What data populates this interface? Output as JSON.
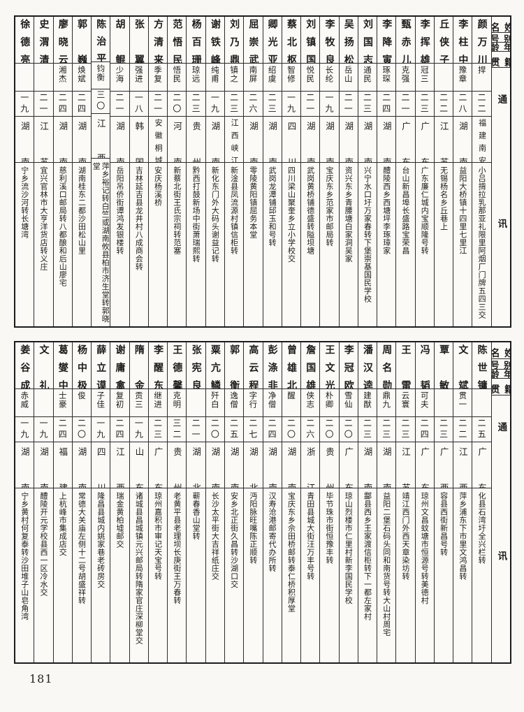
{
  "page": {
    "number": "181"
  },
  "headers": {
    "name": "姓名",
    "alias": "别号",
    "age": "年龄",
    "native": "籍贯",
    "address": "通讯处"
  },
  "tables": [
    {
      "people": [
        {
          "name": "颜万川",
          "alias": "捍",
          "age": "二二",
          "native": "福建南安",
          "address": "小吕揹拉乳那亚礼限里阿烟厂门牌五四三交"
        },
        {
          "name": "李柱中",
          "alias": "豫章",
          "age": "二八",
          "native": "湖南",
          "address": "益阳大桥镇十四里七里江"
        },
        {
          "name": "丘侠子",
          "alias": "",
          "age": "二二",
          "native": "江苏",
          "address": "无锡杨名乡丘巷上"
        },
        {
          "name": "李挥雄",
          "alias": "冠三",
          "age": "二三",
          "native": "广东",
          "address": "广东廉仁城内宝顺隆号转"
        },
        {
          "name": "甄赤儿",
          "alias": "克强",
          "age": "二一",
          "native": "广东",
          "address": "台山新昌埠长盛路宝荣昌"
        },
        {
          "name": "李降寅",
          "alias": "琢琛",
          "age": "二四",
          "native": "湖南",
          "address": "醴陵西乡西塘坪李琢璋家"
        },
        {
          "name": "刘国志",
          "alias": "通民",
          "age": "二三",
          "native": "湖南",
          "address": "兴宁水口圩万家春转下堡崇基国民学校"
        },
        {
          "name": "吴扬松",
          "alias": "岳山",
          "age": "二一",
          "native": "湖南",
          "address": "资兴东乡青腰塘白家洞吴家"
        },
        {
          "name": "李牧良",
          "alias": "长纶",
          "age": "一九",
          "native": "湖南",
          "address": "宝庆东乡范家市邮局转"
        },
        {
          "name": "刘镇国",
          "alias": "悦民",
          "age": "二一",
          "native": "湖南",
          "address": "武岗黄桥铺德盛转隘坝塘"
        },
        {
          "name": "蔡北枢",
          "alias": "智修",
          "age": "一九",
          "native": "四川",
          "address": "四川梁山聚奎乡立小学校交"
        },
        {
          "name": "卿光亚",
          "alias": "绍虞",
          "age": "二三",
          "native": "湖南",
          "address": "武岗龙潭铺邱玉和号转"
        },
        {
          "name": "屈崇武",
          "alias": "南屏",
          "age": "二六",
          "native": "湖南",
          "address": "零陵黄阳镇屈务本堂"
        },
        {
          "name": "刘乃鼎",
          "alias": "镇之",
          "age": "二三",
          "native": "江西峡江",
          "address": "新淦县凤流源村镇信柜转"
        },
        {
          "name": "谢铁峰",
          "alias": "纯甫",
          "age": "一九",
          "native": "湖南",
          "address": "新化东门外大码头谢益记转"
        },
        {
          "name": "杨百珊",
          "alias": "琼远",
          "age": "二三",
          "native": "贵州",
          "address": "黔西打鼓新场中街萧瑞熙转"
        },
        {
          "name": "范悟民",
          "alias": "悟民",
          "age": "二〇",
          "native": "河南",
          "address": "新蔡北街王氏宗祠转范塞"
        },
        {
          "name": "方清来",
          "alias": "季复",
          "age": "二一",
          "native": "安徽桐城",
          "address": "安庆杨溪桥"
        },
        {
          "name": "张翼",
          "alias": "强进",
          "age": "一八",
          "native": "韩国",
          "address": "吉林延吉县龙井村八成商会转"
        },
        {
          "name": "胡鲲",
          "alias": "少海",
          "age": "二一",
          "native": "湖南",
          "address": "岳阳吊侨街谭鸿发银楼转"
        },
        {
          "name": "陈治平",
          "alias": "钧衡",
          "age": "三〇",
          "native": "江西",
          "address": "萍乡裕记转白竺或湖南攸县柏市济生堂转郭晓堂"
        },
        {
          "name": "郭巍",
          "alias": "焕斌",
          "age": "二四",
          "native": "湖南",
          "address": "湖南桂东二都沙田松山里"
        },
        {
          "name": "廖晓云",
          "alias": "湘杰",
          "age": "二四",
          "native": "湖南",
          "address": "慈利溪口邮局转八都酿和后山廖宅"
        },
        {
          "name": "史渭清",
          "alias": "",
          "age": "二一",
          "native": "江苏",
          "address": "宜兴官林市大亨洋货店转义庄"
        },
        {
          "name": "徐德亮",
          "alias": "",
          "age": "一九",
          "native": "湖南",
          "address": "宁乡流沙河转长塘湾"
        }
      ]
    },
    {
      "people": [
        {
          "name": "陈世镛",
          "alias": "",
          "age": "二五",
          "native": "广东",
          "address": "化县石湾圩全兴栏转"
        },
        {
          "name": "文斌",
          "alias": "贯一",
          "age": "二二",
          "native": "江西",
          "address": "萍乡浦东下市里文鸿昌转"
        },
        {
          "name": "覃敏",
          "alias": "",
          "age": "二三",
          "native": "广西",
          "address": "容县西街新昌号转"
        },
        {
          "name": "冯韬",
          "alias": "可夫",
          "age": "二四",
          "native": "广东",
          "address": "琼州文昌蚊塘市恒源号转美德村"
        },
        {
          "name": "王雷",
          "alias": "云寰",
          "age": "二三",
          "native": "江苏",
          "address": "靖江西门外西天章染坊转"
        },
        {
          "name": "周名勋",
          "alias": "鼎九",
          "age": "二三",
          "native": "湖南",
          "address": "益阳二堡石码头同和南货号转大山村周宅"
        },
        {
          "name": "潘汉逵",
          "alias": "建猷",
          "age": "二三",
          "native": "湖南",
          "address": "酃县西乡王家渡信柜转下一都左家村"
        },
        {
          "name": "李冠欧",
          "alias": "雪仙",
          "age": "二〇",
          "native": "广东",
          "address": "琼山烈楼市仁里村新李国民学校"
        },
        {
          "name": "王文光",
          "alias": "朴卿",
          "age": "二〇",
          "native": "贵州",
          "address": "毕节珠市街恒豫丰转"
        },
        {
          "name": "詹国雄",
          "alias": "侠志",
          "age": "二六",
          "native": "浙江",
          "address": "青田县城大街汪万丰号转"
        },
        {
          "name": "曾雄北",
          "alias": "醒",
          "age": "二〇",
          "native": "湖南",
          "address": "宝庆东乡佘田桥邮转泰仁桥积厚堂"
        },
        {
          "name": "彭涤非",
          "alias": "净僧",
          "age": "二四",
          "native": "湖南",
          "address": "汉寿沧港邮寄代办所转"
        },
        {
          "name": "高云程",
          "alias": "字行",
          "age": "二七",
          "native": "湖北",
          "address": "沔阳脉旺嘴陈正顺转"
        },
        {
          "name": "郭衡",
          "alias": "逸僧",
          "age": "二五",
          "native": "湖南",
          "address": "安乡北正街久昌转沙湖口交"
        },
        {
          "name": "粟亢鳞",
          "alias": "歼白",
          "age": "二〇",
          "native": "湖南",
          "address": "长沙太平街大吉祥纸庄交"
        },
        {
          "name": "张宪良",
          "alias": "",
          "age": "二一",
          "native": "湖北",
          "address": "蕲春香山堂转"
        },
        {
          "name": "王德馨",
          "alias": "克明",
          "age": "三二",
          "native": "贵州",
          "address": "老黄平县老理坝长庚街王万春转"
        },
        {
          "name": "李醒东",
          "alias": "继进",
          "age": "二三",
          "native": "广东",
          "address": "琼州嘉积市审记天宝号转"
        },
        {
          "name": "隋金",
          "alias": "贡三",
          "age": "一九",
          "native": "山东",
          "address": "诸城县昌城镇元兴邮局转隋家官庄深柳堂交"
        },
        {
          "name": "谢庸禽",
          "alias": "复初",
          "age": "二四",
          "native": "江西",
          "address": "瑞金黄柏墟邮交"
        },
        {
          "name": "薛立谟",
          "alias": "子佳",
          "age": "一九",
          "native": "四川",
          "address": "隆昌县城内姚家巷老砖房交"
        },
        {
          "name": "杨中极",
          "alias": "俊",
          "age": "二〇",
          "native": "湖南",
          "address": "常德大关庙左侧十二号胡盛祥转"
        },
        {
          "name": "葛燮中",
          "alias": "士豪",
          "age": "二四",
          "native": "福建",
          "address": "上杭峰市集成店交"
        },
        {
          "name": "文礼",
          "alias": "",
          "age": "一九",
          "native": "湖南",
          "address": "醴陵开元学校县西一区冷水交"
        },
        {
          "name": "姜谷成",
          "alias": "赤威",
          "age": "一九",
          "native": "湖南",
          "address": "宁乡黄村何复泰转沙田堆子山皂角湾"
        }
      ]
    }
  ]
}
